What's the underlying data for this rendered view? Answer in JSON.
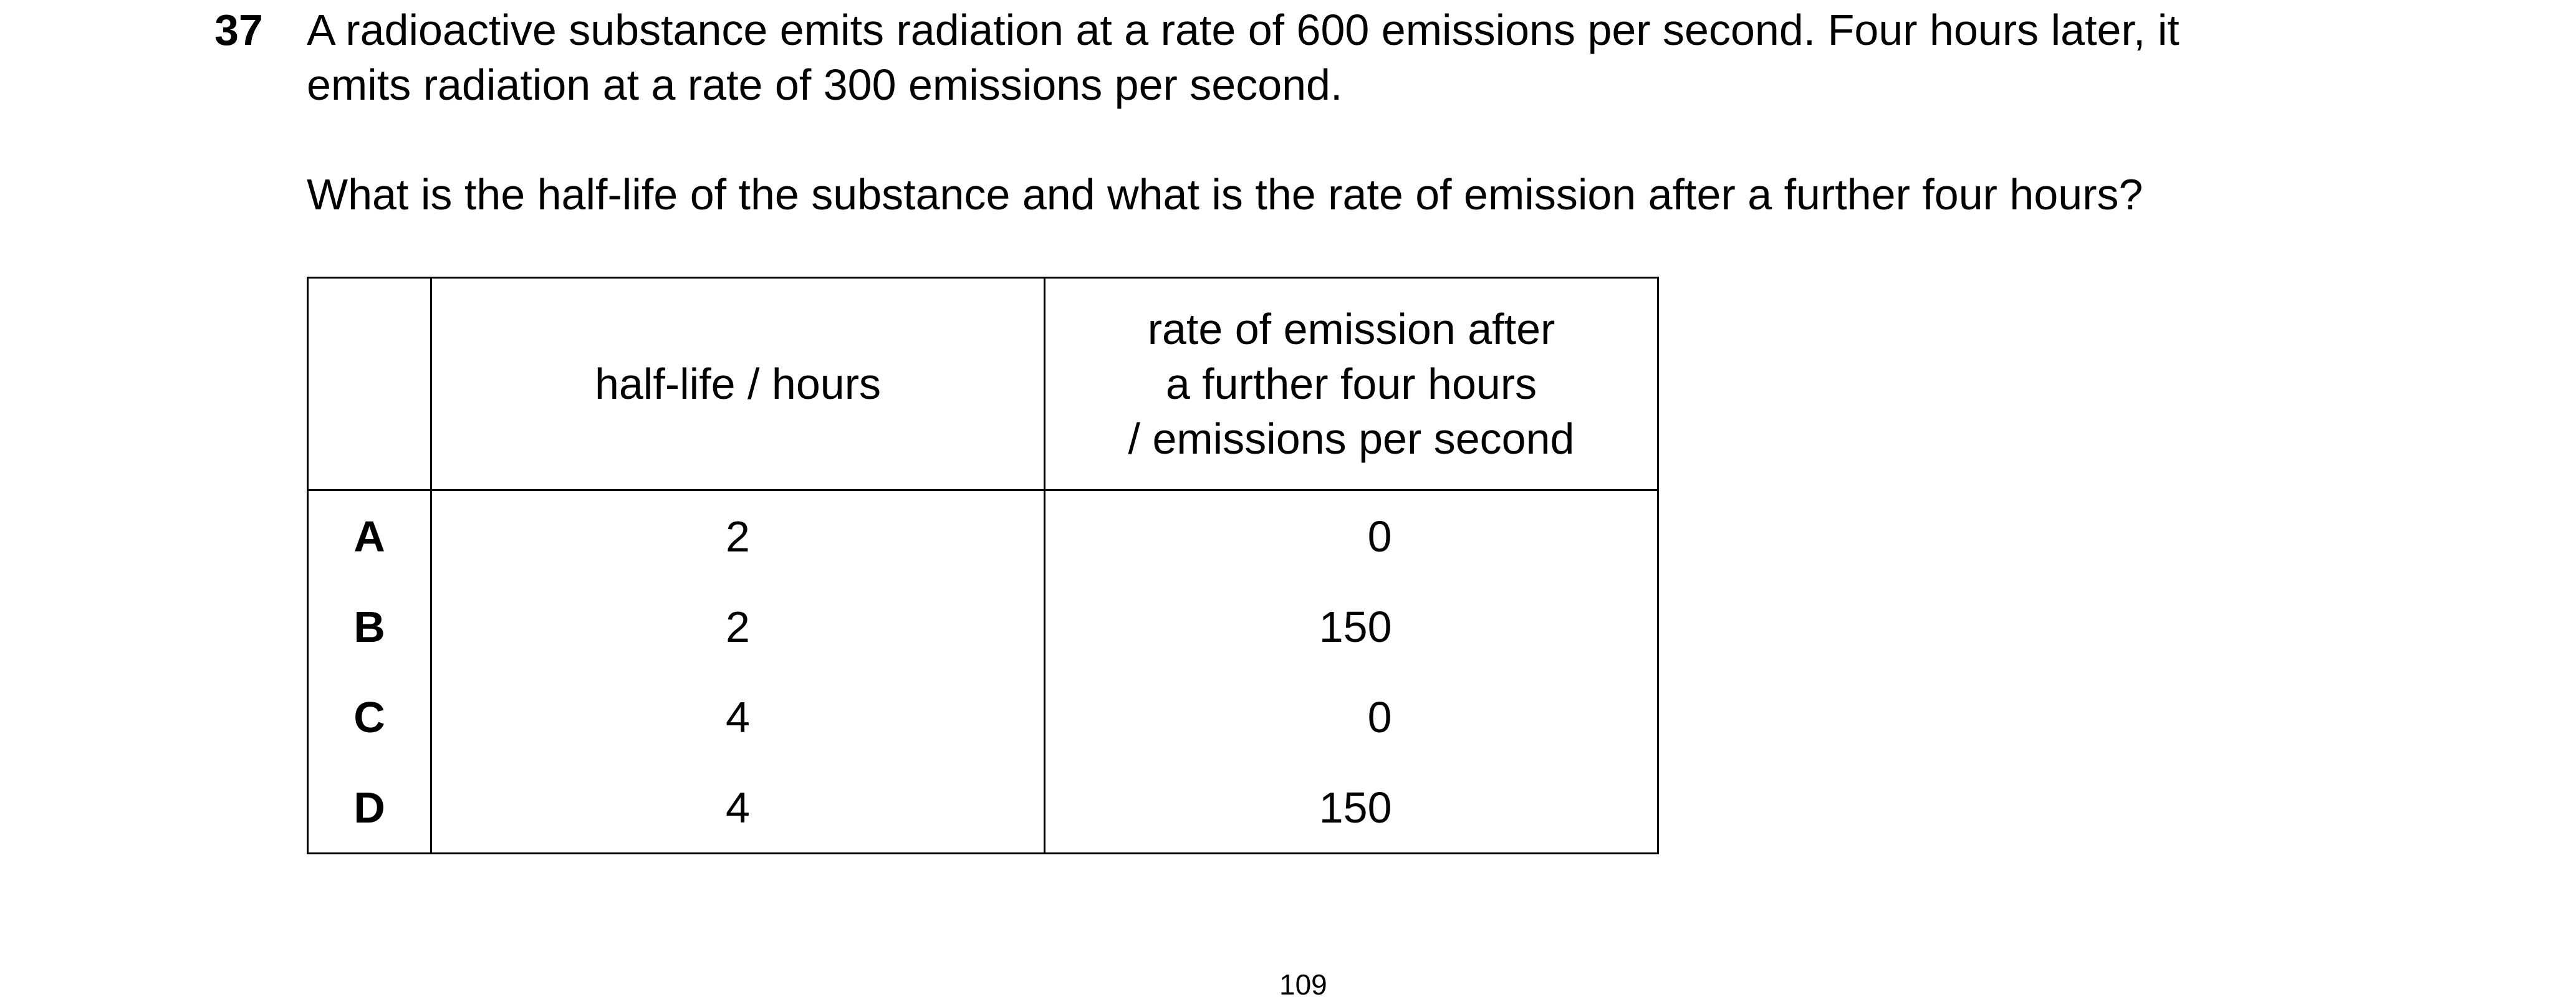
{
  "question": {
    "number": "37",
    "stem_line1": "A radioactive substance emits radiation at a rate of 600 emissions per second. Four hours later, it",
    "stem_line2": "emits radiation at a rate of 300 emissions per second.",
    "ask": "What is the half-life of the substance and what is the rate of emission after a further four hours?"
  },
  "table": {
    "headers": {
      "half_life": "half-life / hours",
      "rate_line1": "rate of emission after",
      "rate_line2": "a further four hours",
      "rate_line3": "/ emissions per second"
    },
    "rows": [
      {
        "letter": "A",
        "half_life": "2",
        "rate": "0"
      },
      {
        "letter": "B",
        "half_life": "2",
        "rate": "150"
      },
      {
        "letter": "C",
        "half_life": "4",
        "rate": "0"
      },
      {
        "letter": "D",
        "half_life": "4",
        "rate": "150"
      }
    ]
  },
  "footer": {
    "page_number": "109"
  }
}
